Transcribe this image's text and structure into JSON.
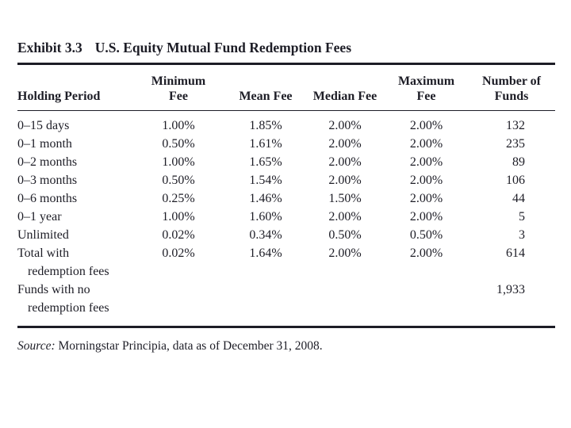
{
  "exhibit": {
    "label": "Exhibit 3.3",
    "title": "U.S. Equity Mutual Fund Redemption Fees"
  },
  "table": {
    "headers": [
      {
        "line1": "",
        "line2": "Holding Period"
      },
      {
        "line1": "Minimum",
        "line2": "Fee"
      },
      {
        "line1": "",
        "line2": "Mean Fee"
      },
      {
        "line1": "",
        "line2": "Median Fee"
      },
      {
        "line1": "Maximum",
        "line2": "Fee"
      },
      {
        "line1": "Number of",
        "line2": "Funds"
      }
    ],
    "rows": [
      {
        "label": [
          "0–15 days"
        ],
        "values": [
          "1.00%",
          "1.85%",
          "2.00%",
          "2.00%",
          "132"
        ]
      },
      {
        "label": [
          "0–1 month"
        ],
        "values": [
          "0.50%",
          "1.61%",
          "2.00%",
          "2.00%",
          "235"
        ]
      },
      {
        "label": [
          "0–2 months"
        ],
        "values": [
          "1.00%",
          "1.65%",
          "2.00%",
          "2.00%",
          "89"
        ]
      },
      {
        "label": [
          "0–3 months"
        ],
        "values": [
          "0.50%",
          "1.54%",
          "2.00%",
          "2.00%",
          "106"
        ]
      },
      {
        "label": [
          "0–6 months"
        ],
        "values": [
          "0.25%",
          "1.46%",
          "1.50%",
          "2.00%",
          "44"
        ]
      },
      {
        "label": [
          "0–1 year"
        ],
        "values": [
          "1.00%",
          "1.60%",
          "2.00%",
          "2.00%",
          "5"
        ]
      },
      {
        "label": [
          "Unlimited"
        ],
        "values": [
          "0.02%",
          "0.34%",
          "0.50%",
          "0.50%",
          "3"
        ]
      },
      {
        "label": [
          "Total with",
          "redemption fees"
        ],
        "values": [
          "0.02%",
          "1.64%",
          "2.00%",
          "2.00%",
          "614"
        ]
      },
      {
        "label": [
          "Funds with no",
          "redemption fees"
        ],
        "values": [
          "",
          "",
          "",
          "",
          "1,933"
        ]
      }
    ]
  },
  "source": {
    "label": "Source:",
    "text": " Morningstar Principia, data as of December 31, 2008."
  }
}
